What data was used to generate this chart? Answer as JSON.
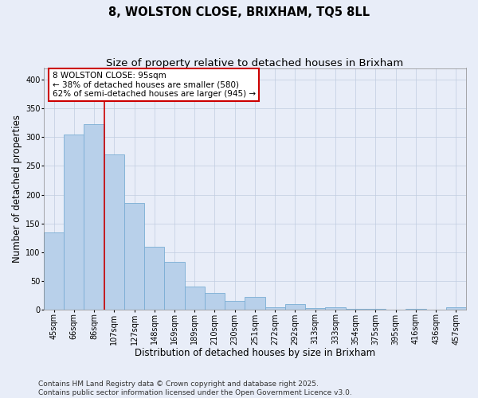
{
  "title": "8, WOLSTON CLOSE, BRIXHAM, TQ5 8LL",
  "subtitle": "Size of property relative to detached houses in Brixham",
  "xlabel": "Distribution of detached houses by size in Brixham",
  "ylabel": "Number of detached properties",
  "categories": [
    "45sqm",
    "66sqm",
    "86sqm",
    "107sqm",
    "127sqm",
    "148sqm",
    "169sqm",
    "189sqm",
    "210sqm",
    "230sqm",
    "251sqm",
    "272sqm",
    "292sqm",
    "313sqm",
    "333sqm",
    "354sqm",
    "375sqm",
    "395sqm",
    "416sqm",
    "436sqm",
    "457sqm"
  ],
  "values": [
    135,
    305,
    322,
    270,
    185,
    110,
    83,
    40,
    29,
    15,
    22,
    5,
    10,
    3,
    5,
    1,
    1,
    0,
    1,
    0,
    4
  ],
  "bar_color": "#b8d0ea",
  "bar_edge_color": "#7aadd4",
  "vline_x_index": 2,
  "vline_color": "#cc0000",
  "annotation_text": "8 WOLSTON CLOSE: 95sqm\n← 38% of detached houses are smaller (580)\n62% of semi-detached houses are larger (945) →",
  "annotation_box_color": "#ffffff",
  "annotation_box_edge": "#cc0000",
  "background_color": "#e8edf8",
  "plot_bg_color": "#e8edf8",
  "grid_color": "#c0cce0",
  "footer": "Contains HM Land Registry data © Crown copyright and database right 2025.\nContains public sector information licensed under the Open Government Licence v3.0.",
  "ylim": [
    0,
    420
  ],
  "yticks": [
    0,
    50,
    100,
    150,
    200,
    250,
    300,
    350,
    400
  ],
  "title_fontsize": 10.5,
  "subtitle_fontsize": 9.5,
  "axis_label_fontsize": 8.5,
  "tick_fontsize": 7,
  "annotation_fontsize": 7.5,
  "footer_fontsize": 6.5
}
